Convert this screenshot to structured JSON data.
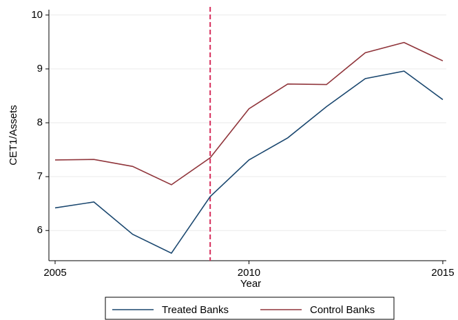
{
  "chart_data": {
    "type": "line",
    "x": [
      2005,
      2006,
      2007,
      2008,
      2009,
      2010,
      2011,
      2012,
      2013,
      2014,
      2015
    ],
    "series": [
      {
        "name": "Treated Banks",
        "color": "#1a476f",
        "values": [
          6.42,
          6.53,
          5.93,
          5.58,
          6.63,
          7.31,
          7.72,
          8.3,
          8.82,
          8.96,
          8.43
        ]
      },
      {
        "name": "Control Banks",
        "color": "#90353b",
        "values": [
          7.31,
          7.32,
          7.19,
          6.85,
          7.35,
          8.26,
          8.72,
          8.71,
          9.3,
          9.49,
          9.15
        ]
      }
    ],
    "x_label": "Year",
    "y_label": "CET1/Assets",
    "xlim": [
      2004.84,
      2015.09
    ],
    "xticks": [
      2005,
      2010,
      2015
    ],
    "ylim": [
      5.44,
      10.1
    ],
    "yticks": [
      6,
      7,
      8,
      9,
      10
    ],
    "vline": {
      "x": 2009,
      "color": "#d62b5a"
    },
    "grid": true,
    "legend": "bottom"
  }
}
